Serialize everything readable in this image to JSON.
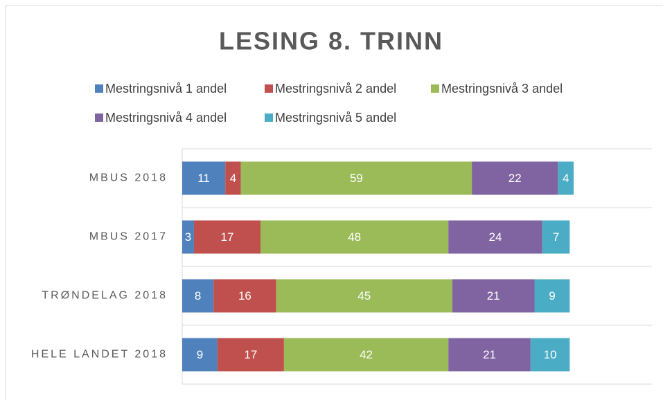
{
  "chart_data": {
    "type": "stacked_barh",
    "title": "LESING 8. TRINN",
    "categories": [
      "MBUS 2018",
      "MBUS 2017",
      "TRØNDELAG 2018",
      "HELE LANDET 2018"
    ],
    "series": [
      {
        "name": "Mestringsnivå 1 andel",
        "color": "#4f81bd",
        "values": [
          11,
          3,
          8,
          9
        ]
      },
      {
        "name": "Mestringsnivå 2 andel",
        "color": "#c0504d",
        "values": [
          4,
          17,
          16,
          17
        ]
      },
      {
        "name": "Mestringsnivå 3 andel",
        "color": "#9bbb59",
        "values": [
          59,
          48,
          45,
          42
        ]
      },
      {
        "name": "Mestringsnivå 4 andel",
        "color": "#8064a2",
        "values": [
          22,
          24,
          21,
          21
        ]
      },
      {
        "name": "Mestringsnivå 5 andel",
        "color": "#4bacc6",
        "values": [
          4,
          7,
          9,
          10
        ]
      }
    ],
    "xlim": [
      0,
      120
    ],
    "legend": "top"
  }
}
